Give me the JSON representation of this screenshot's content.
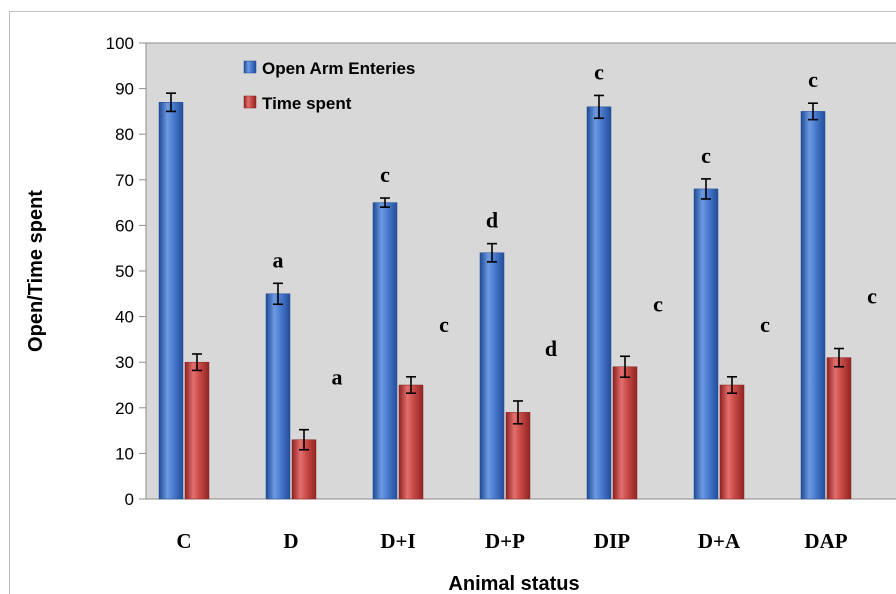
{
  "chart_data": {
    "type": "bar",
    "xlabel": "Animal status",
    "ylabel": "Open/Time spent",
    "ylim": [
      0,
      100
    ],
    "yticks": [
      0,
      10,
      20,
      30,
      40,
      50,
      60,
      70,
      80,
      90,
      100
    ],
    "categories": [
      "C",
      "D",
      "D+I",
      "D+P",
      "DIP",
      "D+A",
      "DAP"
    ],
    "series": [
      {
        "name": "Open Arm Enteries",
        "color": "#3d6fc4",
        "values": [
          87,
          45,
          65,
          54,
          86,
          68,
          85
        ],
        "errors": [
          2,
          2.3,
          1,
          2,
          2.5,
          2.2,
          1.8
        ],
        "labels": [
          "",
          "a",
          "c",
          "d",
          "c",
          "c",
          "c"
        ]
      },
      {
        "name": "Time spent",
        "color": "#c43d3b",
        "values": [
          30,
          13,
          25,
          19,
          29,
          25,
          31
        ],
        "errors": [
          1.8,
          2.2,
          1.8,
          2.5,
          2.3,
          1.8,
          2
        ],
        "labels": [
          "",
          "a",
          "c",
          "d",
          "c",
          "c",
          "c"
        ]
      }
    ],
    "grid": false,
    "legend_position": "top-left"
  }
}
